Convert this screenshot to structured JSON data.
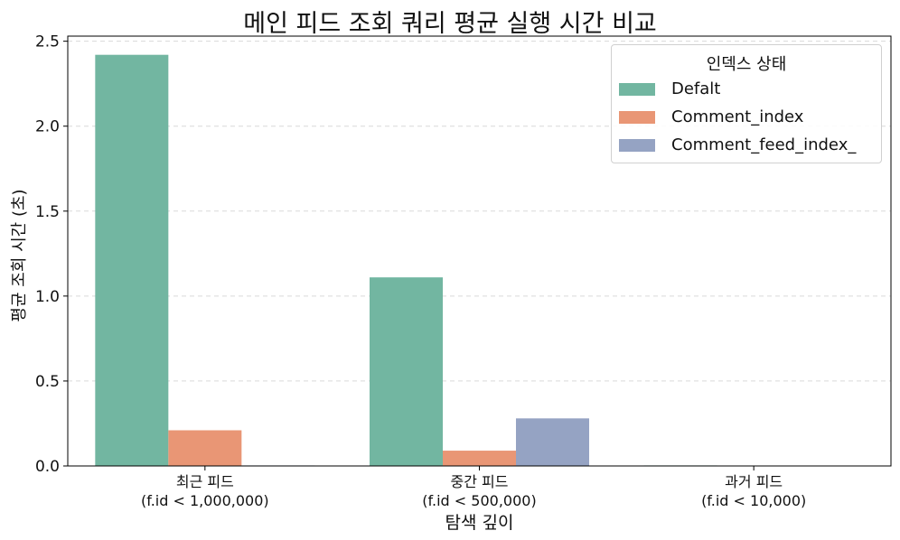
{
  "chart_data": {
    "type": "bar",
    "title": "메인 피드 조회 쿼리 평균 실행 시간 비교",
    "xlabel": "탐색 깊이",
    "ylabel": "평균 조회 시간 (초)",
    "categories": [
      [
        "최근 피드",
        "(f.id < 1,000,000)"
      ],
      [
        "중간 피드",
        "(f.id < 500,000)"
      ],
      [
        "과거 피드",
        "(f.id < 10,000)"
      ]
    ],
    "legend_title": "인덱스 상태",
    "legend_position": "top-right",
    "series": [
      {
        "name": "Defalt",
        "color": "#72b6a1",
        "values": [
          2.42,
          1.11,
          0.003
        ]
      },
      {
        "name": "Comment_index",
        "color": "#e99675",
        "values": [
          0.21,
          0.09,
          0.002
        ]
      },
      {
        "name": "Comment_feed_index_",
        "color": "#95a3c3",
        "values": [
          0.003,
          0.28,
          0.002
        ]
      }
    ],
    "ylim": [
      0,
      2.53
    ],
    "yticks": [
      "0.0",
      "0.5",
      "1.0",
      "1.5",
      "2.0",
      "2.5"
    ],
    "grid": "y-dashed"
  }
}
